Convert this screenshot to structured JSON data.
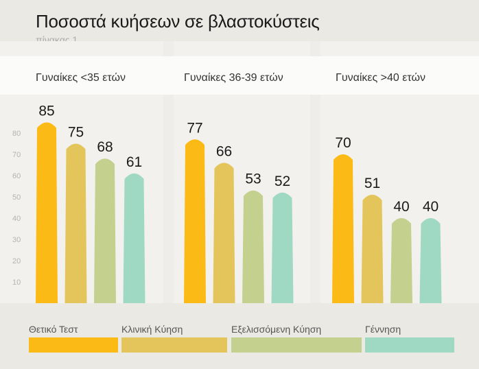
{
  "chart_data": {
    "type": "bar",
    "title": "Ποσοστά κυήσεων σε βλαστοκύστεις",
    "subtitle": "πίνακας 1",
    "groups": [
      "Γυναίκες <35 ετών",
      "Γυναίκες 36-39 ετών",
      "Γυναίκες >40 ετών"
    ],
    "series": [
      {
        "name": "Θετικό Τεστ",
        "color": "#fbba16",
        "values": [
          85,
          77,
          70
        ]
      },
      {
        "name": "Κλινική Κύηση",
        "color": "#e3c55c",
        "values": [
          75,
          66,
          51
        ]
      },
      {
        "name": "Εξελισσόμενη Κύηση",
        "color": "#c4d08e",
        "values": [
          68,
          53,
          40
        ]
      },
      {
        "name": "Γέννηση",
        "color": "#9fd9c3",
        "values": [
          61,
          52,
          40
        ]
      }
    ],
    "y_ticks": [
      10,
      20,
      30,
      40,
      50,
      60,
      70,
      80
    ],
    "ylim": [
      0,
      90
    ],
    "legend_position": "bottom"
  }
}
